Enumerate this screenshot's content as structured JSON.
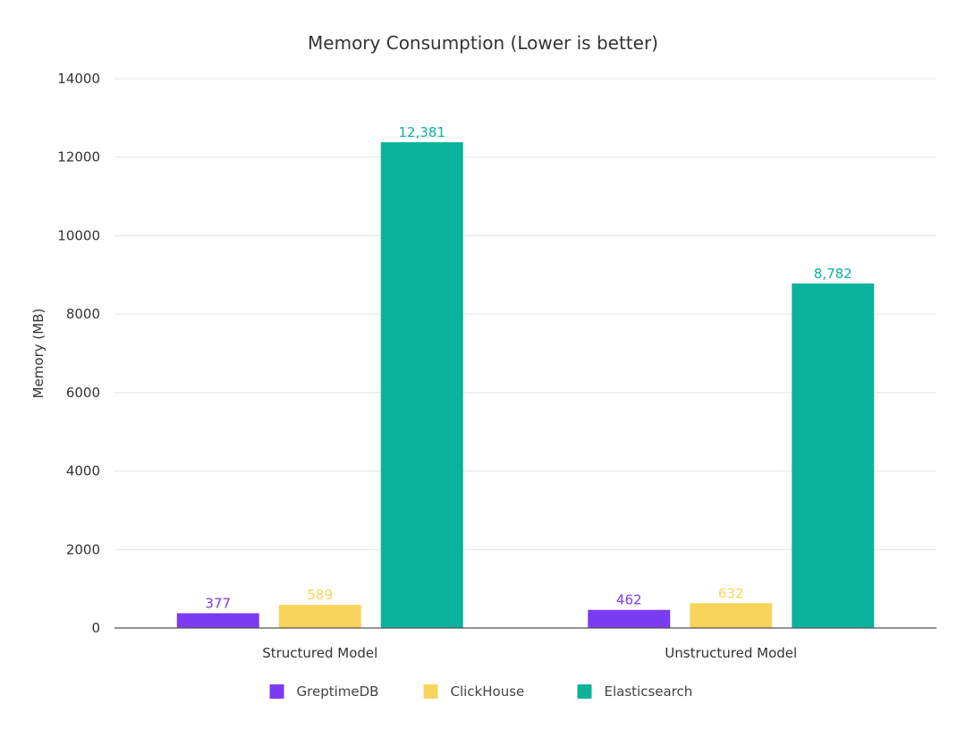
{
  "chart_data": {
    "type": "bar",
    "title": "Memory Consumption (Lower is better)",
    "xlabel": "",
    "ylabel": "Memory (MB)",
    "ylim": [
      0,
      14000
    ],
    "yticks": [
      "0",
      "2000",
      "4000",
      "6000",
      "8000",
      "10000",
      "12000",
      "14000"
    ],
    "grid": true,
    "legend_position": "bottom",
    "categories": [
      "Structured Model",
      "Unstructured Model"
    ],
    "series": [
      {
        "name": "GreptimeDB",
        "color": "#7B3BF2",
        "values": [
          377,
          462
        ],
        "labels": [
          "377",
          "462"
        ]
      },
      {
        "name": "ClickHouse",
        "color": "#F9D45C",
        "values": [
          589,
          632
        ],
        "labels": [
          "589",
          "632"
        ]
      },
      {
        "name": "Elasticsearch",
        "color": "#0BB39C",
        "values": [
          12381,
          8782
        ],
        "labels": [
          "12,381",
          "8,782"
        ]
      }
    ]
  }
}
